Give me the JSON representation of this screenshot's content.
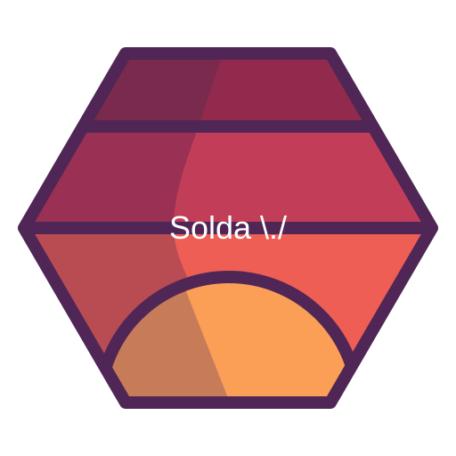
{
  "label": {
    "text": "Solda \\./"
  },
  "icon": {
    "name": "hexagon-sunset-logo"
  },
  "colors": {
    "outline": "#4f2656",
    "band1_light": "#922a4e",
    "band1_shadow": "#7a2a4d",
    "band2_light": "#c23e58",
    "band2_shadow": "#9a3053",
    "band3_light": "#ee5e55",
    "band3_shadow": "#b94c52",
    "sun_light": "#fb9f57",
    "sun_shadow": "#c67c58",
    "text": "#ffffff"
  }
}
